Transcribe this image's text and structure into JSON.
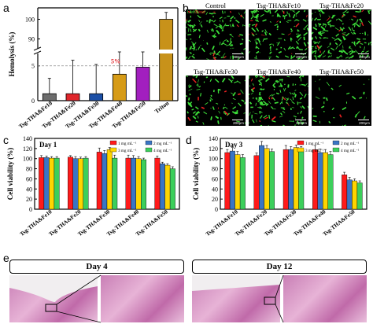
{
  "panels": {
    "a": "a",
    "b": "b",
    "c": "c",
    "d": "d",
    "e": "e"
  },
  "colors": {
    "gray": "#6d6d6d",
    "red": "#e0262b",
    "blue": "#1b4fa6",
    "orange": "#d69b17",
    "purple": "#a21fbf",
    "tan": "#c8921a",
    "c_red": "#ff1a1a",
    "c_blue": "#3a75c4",
    "c_yellow": "#ffd500",
    "c_green": "#3ccf5b"
  },
  "chart_data": [
    {
      "panel": "a",
      "type": "bar",
      "ylabel": "Hemolysis (%)",
      "yaxis_lower_ticks": [
        "0",
        "5"
      ],
      "yaxis_upper_ticks": [
        "90",
        "100"
      ],
      "axis_break": true,
      "categories": [
        "Tsg-THA&Fe10",
        "Tsg-THA&Fe20",
        "Tsg-THA&Fe30",
        "Tsg-THA&Fe40",
        "Tsg-THA&Fe50",
        "Triton"
      ],
      "values": [
        1.0,
        1.0,
        1.0,
        3.8,
        4.8,
        100
      ],
      "errors": [
        2.2,
        4.8,
        4.2,
        4.0,
        4.0,
        3.5
      ],
      "annotation": "5%",
      "dashed_line_value": 5
    },
    {
      "panel": "c",
      "type": "bar",
      "title": "Day 1",
      "ylabel": "Cell viability (%)",
      "ylim": [
        0,
        140
      ],
      "yticks": [
        "0",
        "20",
        "40",
        "60",
        "80",
        "100",
        "120",
        "140"
      ],
      "categories": [
        "Tsg-THA&Fe10",
        "Tsg-THA&Fe20",
        "Tsg-THA&Fe30",
        "Tsg-THA&Fe40",
        "Tsg-THA&Fe50"
      ],
      "series": [
        {
          "name": "1 mg mL⁻¹",
          "values": [
            102,
            103,
            113,
            101,
            101
          ],
          "errors": [
            4,
            3,
            8,
            6,
            4
          ]
        },
        {
          "name": "2 mg mL⁻¹",
          "values": [
            102,
            100,
            110,
            101,
            90
          ],
          "errors": [
            3,
            4,
            6,
            5,
            3
          ]
        },
        {
          "name": "3 mg mL⁻¹",
          "values": [
            101,
            100,
            118,
            100,
            87
          ],
          "errors": [
            3,
            3,
            4,
            4,
            3
          ]
        },
        {
          "name": "4 mg mL⁻¹",
          "values": [
            101,
            101,
            101,
            98,
            80
          ],
          "errors": [
            3,
            3,
            6,
            3,
            4
          ]
        }
      ]
    },
    {
      "panel": "d",
      "type": "bar",
      "title": "Day 3",
      "ylabel": "Cell viability (%)",
      "ylim": [
        0,
        140
      ],
      "yticks": [
        "0",
        "20",
        "40",
        "60",
        "80",
        "100",
        "120",
        "140"
      ],
      "categories": [
        "Tsg-THA&Fe10",
        "Tsg-THA&Fe20",
        "Tsg-THA&Fe30",
        "Tsg-THA&Fe40",
        "Tsg-THA&Fe50"
      ],
      "series": [
        {
          "name": "1 mg mL⁻¹",
          "values": [
            112,
            106,
            118,
            118,
            68
          ],
          "errors": [
            6,
            5,
            8,
            8,
            5
          ]
        },
        {
          "name": "2 mg mL⁻¹",
          "values": [
            115,
            126,
            118,
            112,
            58
          ],
          "errors": [
            7,
            8,
            6,
            7,
            5
          ]
        },
        {
          "name": "3 mg mL⁻¹",
          "values": [
            108,
            120,
            122,
            112,
            56
          ],
          "errors": [
            6,
            6,
            5,
            6,
            4
          ]
        },
        {
          "name": "4 mg mL⁻¹",
          "values": [
            102,
            114,
            118,
            108,
            52
          ],
          "errors": [
            6,
            5,
            6,
            6,
            4
          ]
        }
      ]
    }
  ],
  "microscopy": {
    "legend_live": "Live",
    "legend_dead": "/Dead",
    "images": [
      {
        "caption": "Control",
        "scale": "200μm"
      },
      {
        "caption": "Tsg-THA&Fe10",
        "scale": "200μm"
      },
      {
        "caption": "Tsg-THA&Fe20",
        "scale": "200μm"
      },
      {
        "caption": "Tsg-THA&Fe30",
        "scale": "200μm"
      },
      {
        "caption": "Tsg-THA&Fe40",
        "scale": "200μm"
      },
      {
        "caption": "Tsg-THA&Fe50",
        "scale": "200μm"
      }
    ]
  },
  "histology": {
    "day4": "Day 4",
    "day12": "Day 12"
  }
}
